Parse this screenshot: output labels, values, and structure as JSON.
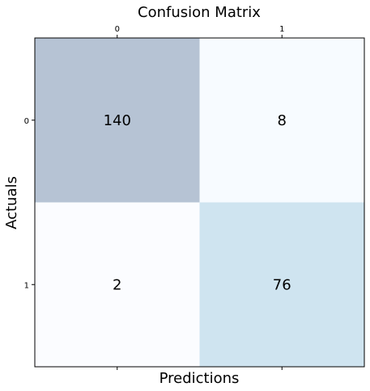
{
  "chart_data": {
    "type": "heatmap",
    "title": "Confusion Matrix",
    "xlabel": "Predictions",
    "ylabel": "Actuals",
    "x_categories": [
      "0",
      "1"
    ],
    "y_categories": [
      "0",
      "1"
    ],
    "values": [
      [
        140,
        8
      ],
      [
        2,
        76
      ]
    ],
    "x_ticks_position": "top",
    "grid": false,
    "legend": "none",
    "colors": {
      "cell_0_0": "#b6c3d4",
      "cell_0_1": "#f7fbff",
      "cell_1_0": "#fbfcff",
      "cell_1_1": "#cfe4f0",
      "text": "#000000",
      "frame": "#000000"
    }
  }
}
